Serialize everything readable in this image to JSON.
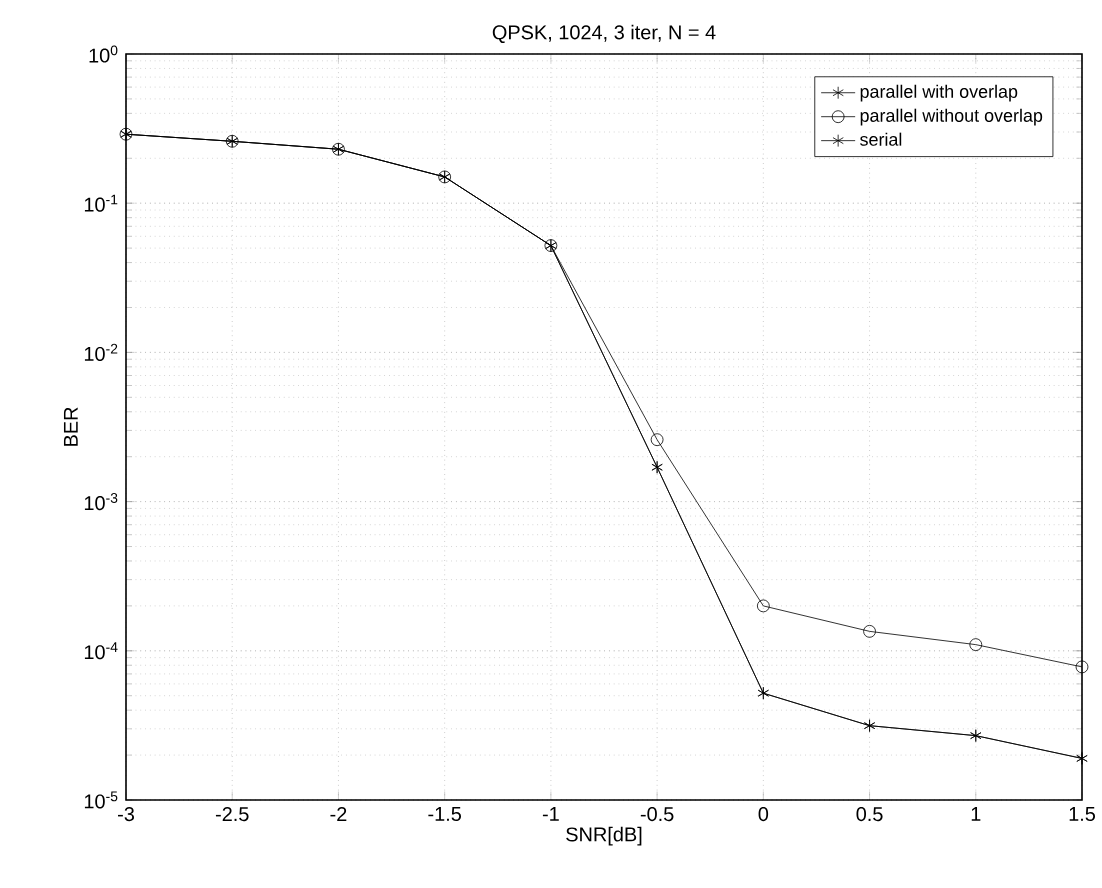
{
  "chart_data": {
    "type": "line",
    "title": "QPSK, 1024, 3 iter, N = 4",
    "xlabel": "SNR[dB]",
    "ylabel": "BER",
    "x": [
      -3,
      -2.5,
      -2,
      -1.5,
      -1,
      -0.5,
      0,
      0.5,
      1,
      1.5
    ],
    "series": [
      {
        "name": "parallel with overlap",
        "color": "#000000",
        "marker": "cross",
        "values": [
          0.29,
          0.26,
          0.23,
          0.15,
          0.052,
          0.0017,
          5.2e-05,
          3.15e-05,
          2.7e-05,
          1.9e-05
        ]
      },
      {
        "name": "parallel without overlap",
        "color": "#000000",
        "marker": "circle",
        "values": [
          0.29,
          0.26,
          0.23,
          0.15,
          0.052,
          0.0026,
          0.0002,
          0.000135,
          0.00011,
          7.8e-05
        ]
      },
      {
        "name": "serial",
        "color": "#000000",
        "marker": "cross",
        "values": [
          0.29,
          0.26,
          0.23,
          0.15,
          0.052,
          0.0017,
          5.2e-05,
          3.15e-05,
          2.7e-05,
          1.9e-05
        ]
      }
    ],
    "log": "y",
    "grid": true,
    "legend": "top right",
    "line_style": "solid",
    "xlim": [
      -3,
      1.5
    ],
    "xticks": [
      -3,
      -2.5,
      -2,
      -1.5,
      -1,
      -0.5,
      0,
      0.5,
      1,
      1.5
    ],
    "ylim": [
      1e-05,
      1
    ],
    "yticks": [
      {
        "value": 1e-05,
        "label": "10$^{-5}$"
      },
      {
        "value": 0.0001,
        "label": "10$^{-4}$"
      },
      {
        "value": 0.001,
        "label": "10$^{-3}$"
      },
      {
        "value": 0.01,
        "label": "10$^{-2}$"
      },
      {
        "value": 0.1,
        "label": "10$^{-1}$"
      },
      {
        "value": 1,
        "label": "10$^{0}$"
      }
    ]
  }
}
